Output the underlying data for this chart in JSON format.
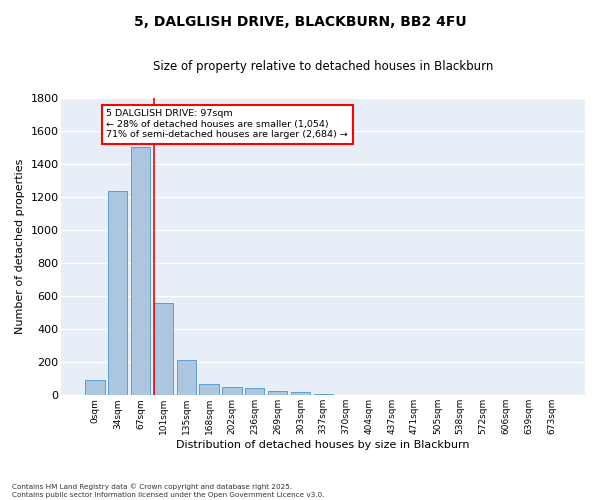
{
  "title1": "5, DALGLISH DRIVE, BLACKBURN, BB2 4FU",
  "title2": "Size of property relative to detached houses in Blackburn",
  "xlabel": "Distribution of detached houses by size in Blackburn",
  "ylabel": "Number of detached properties",
  "categories": [
    "0sqm",
    "34sqm",
    "67sqm",
    "101sqm",
    "135sqm",
    "168sqm",
    "202sqm",
    "236sqm",
    "269sqm",
    "303sqm",
    "337sqm",
    "370sqm",
    "404sqm",
    "437sqm",
    "471sqm",
    "505sqm",
    "538sqm",
    "572sqm",
    "606sqm",
    "639sqm",
    "673sqm"
  ],
  "bar_values": [
    95,
    1235,
    1505,
    560,
    215,
    70,
    50,
    42,
    28,
    18,
    5,
    2,
    0,
    0,
    0,
    0,
    0,
    0,
    0,
    0,
    0
  ],
  "bar_color": "#adc6e0",
  "bar_edge_color": "#5a9fd4",
  "ylim": [
    0,
    1800
  ],
  "yticks": [
    0,
    200,
    400,
    600,
    800,
    1000,
    1200,
    1400,
    1600,
    1800
  ],
  "annotation_text_line1": "5 DALGLISH DRIVE: 97sqm",
  "annotation_text_line2": "← 28% of detached houses are smaller (1,054)",
  "annotation_text_line3": "71% of semi-detached houses are larger (2,684) →",
  "grid_color": "#d0d8e8",
  "bg_color": "#e8eef8",
  "footer_line1": "Contains HM Land Registry data © Crown copyright and database right 2025.",
  "footer_line2": "Contains public sector information licensed under the Open Government Licence v3.0."
}
